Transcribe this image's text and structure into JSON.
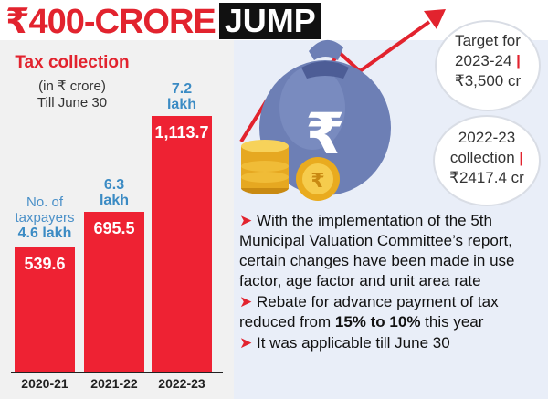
{
  "headline": {
    "prefix": "₹400-CRORE",
    "highlight": "JUMP"
  },
  "chart_data": {
    "type": "bar",
    "title": "Tax collection",
    "unit_label": "(in ₹ crore)",
    "period_label": "Till June 30",
    "categories": [
      "2020-21",
      "2021-22",
      "2022-23"
    ],
    "values": [
      539.6,
      695.5,
      1113.7
    ],
    "value_labels": [
      "539.6",
      "695.5",
      "1,113.7"
    ],
    "taxpayers_caption": "No. of taxpayers",
    "taxpayers": [
      "4.6 lakh",
      "6.3 lakh",
      "7.2 lakh"
    ],
    "bar_color": "#ee2233"
  },
  "bubbles": {
    "target": {
      "line1": "Target for",
      "line2": "2023-24",
      "line3": "₹3,500 cr"
    },
    "collection": {
      "line1": "2022-23",
      "line2": "collection",
      "line3": "₹2417.4 cr"
    }
  },
  "bullets": {
    "b1": "With the implementation of the 5th Municipal Valuation Committee’s report, certain changes have been made in use factor, age factor and unit area rate",
    "b2_pre": "Rebate for advance payment of tax reduced from ",
    "b2_bold": "15% to 10%",
    "b2_post": " this year",
    "b3": "It was applicable till June 30"
  },
  "colors": {
    "accent": "#e2232e",
    "blue": "#3b8bc4",
    "panel_left": "#f1f1f1",
    "panel_right": "#e9eef8"
  },
  "icons": [
    "rupee-money-bag-icon",
    "gold-coins-icon",
    "rising-arrow-icon"
  ]
}
